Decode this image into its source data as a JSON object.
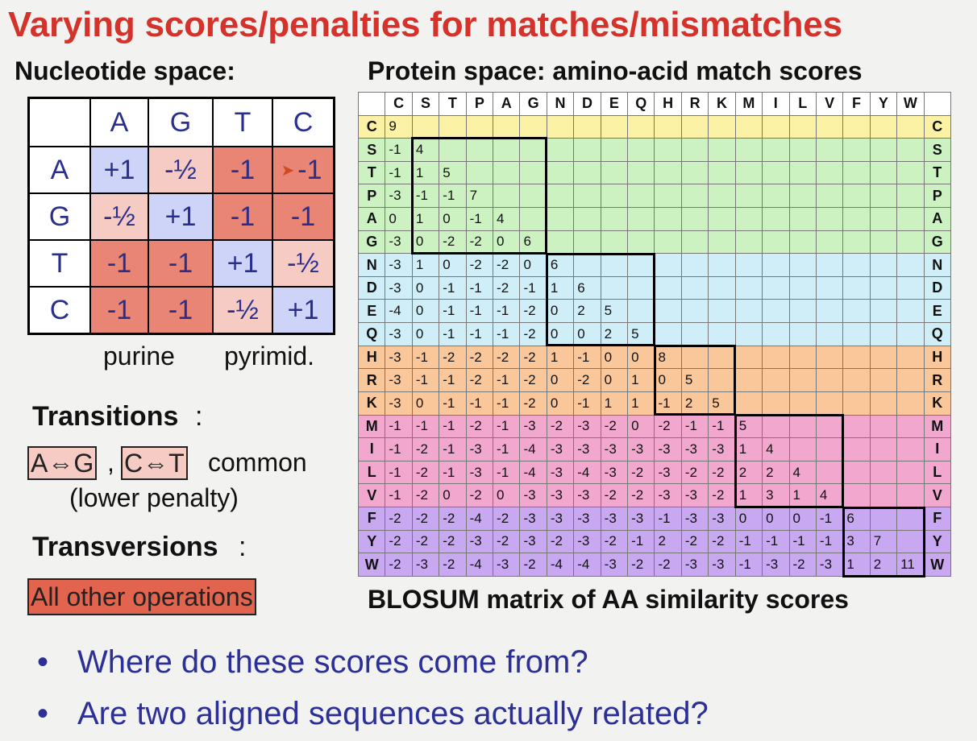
{
  "title": "Varying scores/penalties for matches/mismatches",
  "nucleotide": {
    "heading": "Nucleotide space:",
    "columns": [
      "A",
      "G",
      "T",
      "C"
    ],
    "rows": [
      {
        "label": "A",
        "cells": [
          "+1",
          "-½",
          "-1",
          "-1"
        ],
        "classes": [
          "c-match",
          "c-trans",
          "c-transv",
          "c-transv"
        ]
      },
      {
        "label": "G",
        "cells": [
          "-½",
          "+1",
          "-1",
          "-1"
        ],
        "classes": [
          "c-trans",
          "c-match",
          "c-transv",
          "c-transv"
        ]
      },
      {
        "label": "T",
        "cells": [
          "-1",
          "-1",
          "+1",
          "-½"
        ],
        "classes": [
          "c-transv",
          "c-transv",
          "c-match",
          "c-trans"
        ]
      },
      {
        "label": "C",
        "cells": [
          "-1",
          "-1",
          "-½",
          "+1"
        ],
        "classes": [
          "c-transv",
          "c-transv",
          "c-trans",
          "c-match"
        ]
      }
    ],
    "purine_label": "purine",
    "pyrimid_label": "pyrimid."
  },
  "transitions": {
    "heading": "Transitions",
    "colon": ":",
    "tag_ag": "A⇔G",
    "comma": ",",
    "tag_ct": "C⇔T",
    "common": "common",
    "note": "(lower penalty)"
  },
  "transversions": {
    "heading": "Transversions",
    "colon": ":",
    "tag": "All other operations"
  },
  "protein": {
    "heading": "Protein space:  amino-acid match scores",
    "caption": "BLOSUM matrix of AA similarity scores",
    "amino_acids": [
      "C",
      "S",
      "T",
      "P",
      "A",
      "G",
      "N",
      "D",
      "E",
      "Q",
      "H",
      "R",
      "K",
      "M",
      "I",
      "L",
      "V",
      "F",
      "Y",
      "W"
    ],
    "group_classes": [
      "g1",
      "g2",
      "g2",
      "g2",
      "g2",
      "g2",
      "g3",
      "g3",
      "g3",
      "g3",
      "g4",
      "g4",
      "g4",
      "g5",
      "g5",
      "g5",
      "g5",
      "g6",
      "g6",
      "g6"
    ],
    "rows": [
      [
        "9"
      ],
      [
        "-1",
        "4"
      ],
      [
        "-1",
        "1",
        "5"
      ],
      [
        "-3",
        "-1",
        "-1",
        "7"
      ],
      [
        "0",
        "1",
        "0",
        "-1",
        "4"
      ],
      [
        "-3",
        "0",
        "-2",
        "-2",
        "0",
        "6"
      ],
      [
        "-3",
        "1",
        "0",
        "-2",
        "-2",
        "0",
        "6"
      ],
      [
        "-3",
        "0",
        "-1",
        "-1",
        "-2",
        "-1",
        "1",
        "6"
      ],
      [
        "-4",
        "0",
        "-1",
        "-1",
        "-1",
        "-2",
        "0",
        "2",
        "5"
      ],
      [
        "-3",
        "0",
        "-1",
        "-1",
        "-1",
        "-2",
        "0",
        "0",
        "2",
        "5"
      ],
      [
        "-3",
        "-1",
        "-2",
        "-2",
        "-2",
        "-2",
        "1",
        "-1",
        "0",
        "0",
        "8"
      ],
      [
        "-3",
        "-1",
        "-1",
        "-2",
        "-1",
        "-2",
        "0",
        "-2",
        "0",
        "1",
        "0",
        "5"
      ],
      [
        "-3",
        "0",
        "-1",
        "-1",
        "-1",
        "-2",
        "0",
        "-1",
        "1",
        "1",
        "-1",
        "2",
        "5"
      ],
      [
        "-1",
        "-1",
        "-1",
        "-2",
        "-1",
        "-3",
        "-2",
        "-3",
        "-2",
        "0",
        "-2",
        "-1",
        "-1",
        "5"
      ],
      [
        "-1",
        "-2",
        "-1",
        "-3",
        "-1",
        "-4",
        "-3",
        "-3",
        "-3",
        "-3",
        "-3",
        "-3",
        "-3",
        "1",
        "4"
      ],
      [
        "-1",
        "-2",
        "-1",
        "-3",
        "-1",
        "-4",
        "-3",
        "-4",
        "-3",
        "-2",
        "-3",
        "-2",
        "-2",
        "2",
        "2",
        "4"
      ],
      [
        "-1",
        "-2",
        "0",
        "-2",
        "0",
        "-3",
        "-3",
        "-3",
        "-2",
        "-2",
        "-3",
        "-3",
        "-2",
        "1",
        "3",
        "1",
        "4"
      ],
      [
        "-2",
        "-2",
        "-2",
        "-4",
        "-2",
        "-3",
        "-3",
        "-3",
        "-3",
        "-3",
        "-1",
        "-3",
        "-3",
        "0",
        "0",
        "0",
        "-1",
        "6"
      ],
      [
        "-2",
        "-2",
        "-2",
        "-3",
        "-2",
        "-3",
        "-2",
        "-3",
        "-2",
        "-1",
        "2",
        "-2",
        "-2",
        "-1",
        "-1",
        "-1",
        "-1",
        "3",
        "7"
      ],
      [
        "-2",
        "-3",
        "-2",
        "-4",
        "-3",
        "-2",
        "-4",
        "-4",
        "-3",
        "-2",
        "-2",
        "-3",
        "-3",
        "-1",
        "-3",
        "-2",
        "-3",
        "1",
        "2",
        "11"
      ]
    ],
    "blocks": [
      [
        1,
        5
      ],
      [
        6,
        9
      ],
      [
        10,
        12
      ],
      [
        13,
        16
      ],
      [
        17,
        19
      ]
    ]
  },
  "bullets": [
    "Where do these scores come from?",
    "Are two aligned sequences actually related?"
  ],
  "bullet_glyph": "•"
}
